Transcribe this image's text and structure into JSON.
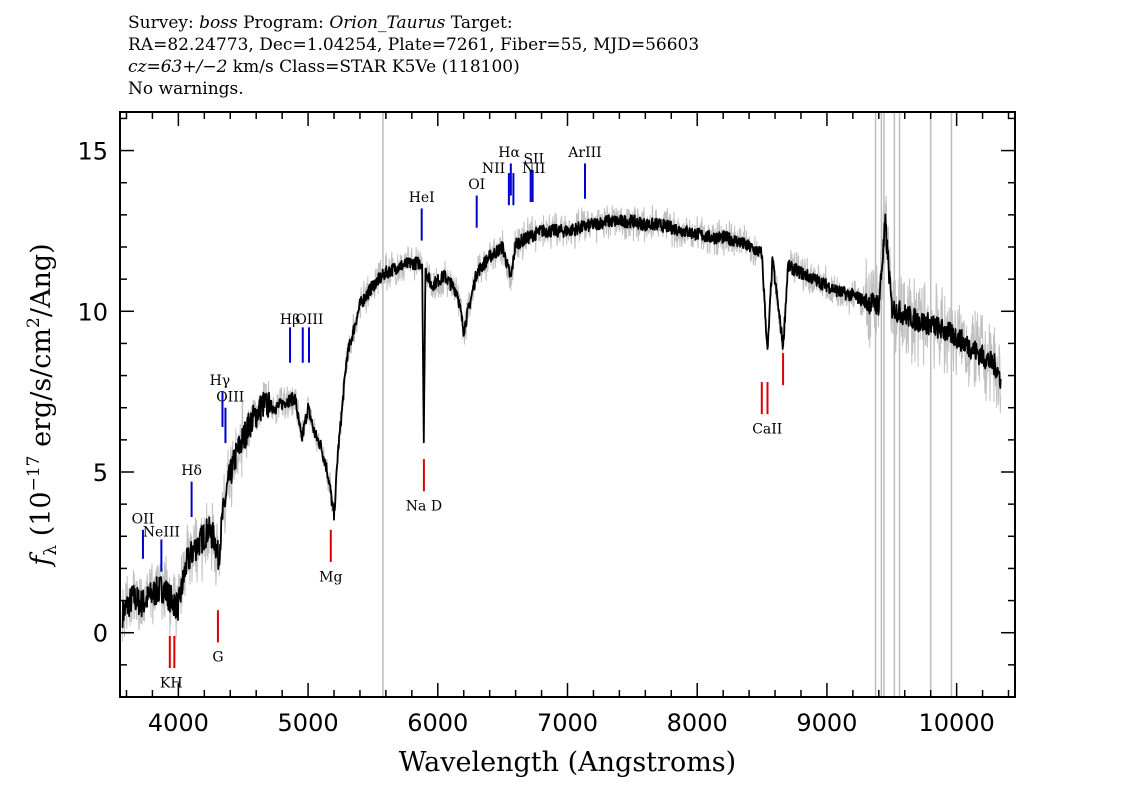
{
  "header": {
    "line1_a": "Survey: ",
    "survey": "boss",
    "line1_b": " Program: ",
    "program": "Orion_Taurus",
    "line1_c": " Target:",
    "line2": "RA=82.24773, Dec=1.04254, Plate=7261, Fiber=55, MJD=56603",
    "cz_label": "cz=63+/−2",
    "line3_rest": " km/s Class=STAR K5Ve (118100)",
    "line4": "No warnings."
  },
  "chart_data": {
    "type": "line",
    "xlabel": "Wavelength (Angstroms)",
    "ylabel_prefix": "f",
    "ylabel_sub": "λ",
    "ylabel_body": " (10",
    "ylabel_exp": "−17",
    "ylabel_units": " erg/s/cm",
    "ylabel_exp2": "2",
    "ylabel_end": "/Ang)",
    "xlim": [
      3550,
      10450
    ],
    "ylim": [
      -2,
      16.2
    ],
    "x_ticks": [
      4000,
      5000,
      6000,
      7000,
      8000,
      9000,
      10000
    ],
    "x_tick_labels": [
      "4000",
      "5000",
      "6000",
      "7000",
      "8000",
      "9000",
      "10000"
    ],
    "y_ticks": [
      0,
      5,
      10,
      15
    ],
    "y_tick_labels": [
      "0",
      "5",
      "10",
      "15"
    ],
    "series": [
      {
        "role": "flux",
        "color": "#000000",
        "x": [
          3570,
          3650,
          3720,
          3800,
          3880,
          3950,
          4000,
          4060,
          4120,
          4180,
          4230,
          4280,
          4310,
          4340,
          4380,
          4450,
          4550,
          4650,
          4750,
          4830,
          4900,
          4950,
          5000,
          5050,
          5100,
          5150,
          5180,
          5200,
          5230,
          5300,
          5400,
          5500,
          5600,
          5700,
          5800,
          5880,
          5892,
          5905,
          5950,
          6050,
          6150,
          6200,
          6300,
          6400,
          6500,
          6563,
          6600,
          6700,
          6800,
          6900,
          7000,
          7100,
          7200,
          7300,
          7400,
          7500,
          7600,
          7700,
          7800,
          7900,
          8000,
          8100,
          8200,
          8300,
          8400,
          8498,
          8542,
          8580,
          8662,
          8700,
          8800,
          8900,
          9000,
          9100,
          9200,
          9300,
          9400,
          9450,
          9500,
          9600,
          9700,
          9800,
          9900,
          10000,
          10100,
          10200,
          10300,
          10340
        ],
        "y": [
          0.6,
          1.1,
          0.9,
          1.2,
          1.4,
          1.0,
          0.8,
          2.1,
          2.6,
          2.9,
          3.2,
          2.9,
          2.3,
          3.6,
          4.6,
          5.6,
          6.5,
          7.1,
          7.0,
          7.2,
          7.3,
          6.0,
          7.0,
          6.2,
          5.8,
          5.0,
          4.2,
          3.6,
          5.6,
          8.6,
          10.2,
          10.8,
          11.2,
          11.4,
          11.5,
          11.5,
          5.8,
          11.3,
          10.8,
          11.1,
          10.6,
          9.4,
          11.2,
          11.7,
          12.0,
          11.0,
          12.1,
          12.3,
          12.5,
          12.5,
          12.5,
          12.6,
          12.7,
          12.8,
          12.8,
          12.8,
          12.7,
          12.7,
          12.6,
          12.5,
          12.4,
          12.3,
          12.3,
          12.2,
          12.0,
          11.8,
          8.7,
          11.6,
          8.9,
          11.4,
          11.2,
          11.0,
          10.8,
          10.6,
          10.5,
          10.3,
          10.2,
          12.7,
          10.1,
          9.9,
          9.7,
          9.6,
          9.4,
          9.2,
          8.9,
          8.6,
          8.3,
          7.9
        ]
      }
    ],
    "sky_lines": [
      5577,
      9375,
      9420,
      9440,
      9520,
      9560,
      9800,
      9960
    ],
    "emission_lines": [
      {
        "label": "OII",
        "x": 3727,
        "y0": 2.3,
        "y1": 3.2
      },
      {
        "label": "NeIII",
        "x": 3869,
        "y0": 1.9,
        "y1": 2.9
      },
      {
        "label": "Hδ",
        "x": 4102,
        "y0": 3.6,
        "y1": 4.7
      },
      {
        "label": "Hγ",
        "x": 4340,
        "y0": 6.4,
        "y1": 7.5
      },
      {
        "label": "OIII",
        "x": 4363,
        "y0": 5.9,
        "y1": 7.0
      },
      {
        "label": "Hβ",
        "x": 4861,
        "y0": 8.4,
        "y1": 9.5
      },
      {
        "label": "OIII",
        "x": 4959,
        "y0": 8.4,
        "y1": 9.5
      },
      {
        "label": "OIII",
        "x": 5007,
        "y0": 8.4,
        "y1": 9.5
      },
      {
        "label": "HeI",
        "x": 5876,
        "y0": 12.2,
        "y1": 13.2
      },
      {
        "label": "OI",
        "x": 6300,
        "y0": 12.6,
        "y1": 13.6
      },
      {
        "label": "NII",
        "x": 6548,
        "y0": 13.3,
        "y1": 14.3
      },
      {
        "label": "Hα",
        "x": 6563,
        "y0": 13.6,
        "y1": 14.6
      },
      {
        "label": "NII",
        "x": 6583,
        "y0": 13.3,
        "y1": 14.3
      },
      {
        "label": "SII",
        "x": 6716,
        "y0": 13.4,
        "y1": 14.4
      },
      {
        "label": "SII",
        "x": 6731,
        "y0": 13.4,
        "y1": 14.4
      },
      {
        "label": "ArIII",
        "x": 7135,
        "y0": 13.5,
        "y1": 14.6
      }
    ],
    "absorption_lines": [
      {
        "label": "K",
        "x": 3934,
        "y0": -1.1,
        "y1": -0.1
      },
      {
        "label": "H",
        "x": 3969,
        "y0": -1.1,
        "y1": -0.1
      },
      {
        "label": "G",
        "x": 4305,
        "y0": -0.3,
        "y1": 0.7
      },
      {
        "label": "Mg",
        "x": 5175,
        "y0": 2.2,
        "y1": 3.2
      },
      {
        "label": "Na D",
        "x": 5893,
        "y0": 4.4,
        "y1": 5.4
      },
      {
        "label": "CaII",
        "x": 8498,
        "y0": 6.8,
        "y1": 7.8
      },
      {
        "label": "CaII",
        "x": 8542,
        "y0": 6.8,
        "y1": 7.8
      },
      {
        "label": "CaII",
        "x": 8662,
        "y0": 7.7,
        "y1": 8.7
      }
    ],
    "line_labels": [
      {
        "text": "OII",
        "x": 3727,
        "y": 3.4
      },
      {
        "text": "NeIII",
        "x": 3869,
        "y": 3.0
      },
      {
        "text": "Hδ",
        "x": 4102,
        "y": 4.9
      },
      {
        "text": "Hγ",
        "x": 4320,
        "y": 7.7
      },
      {
        "text": "OIII",
        "x": 4400,
        "y": 7.2
      },
      {
        "text": "Hβ",
        "x": 4861,
        "y": 9.6
      },
      {
        "text": "OIII",
        "x": 5010,
        "y": 9.6
      },
      {
        "text": "HeI",
        "x": 5876,
        "y": 13.4
      },
      {
        "text": "OI",
        "x": 6300,
        "y": 13.8
      },
      {
        "text": "NII",
        "x": 6430,
        "y": 14.3
      },
      {
        "text": "Hα",
        "x": 6550,
        "y": 14.8
      },
      {
        "text": "SII",
        "x": 6740,
        "y": 14.6
      },
      {
        "text": "NII",
        "x": 6740,
        "y": 14.3
      },
      {
        "text": "ArIII",
        "x": 7135,
        "y": 14.8
      },
      {
        "text": "KH",
        "x": 3945,
        "y": -1.7
      },
      {
        "text": "G",
        "x": 4305,
        "y": -0.9
      },
      {
        "text": "Mg",
        "x": 5175,
        "y": 1.6
      },
      {
        "text": "Na  D",
        "x": 5893,
        "y": 3.8
      },
      {
        "text": "CaII",
        "x": 8540,
        "y": 6.2
      }
    ],
    "colors": {
      "flux": "#000000",
      "error": "#c0c0c0",
      "sky": "#bdbdbd",
      "emission": "#0000cc",
      "absorption": "#dd0000"
    }
  }
}
